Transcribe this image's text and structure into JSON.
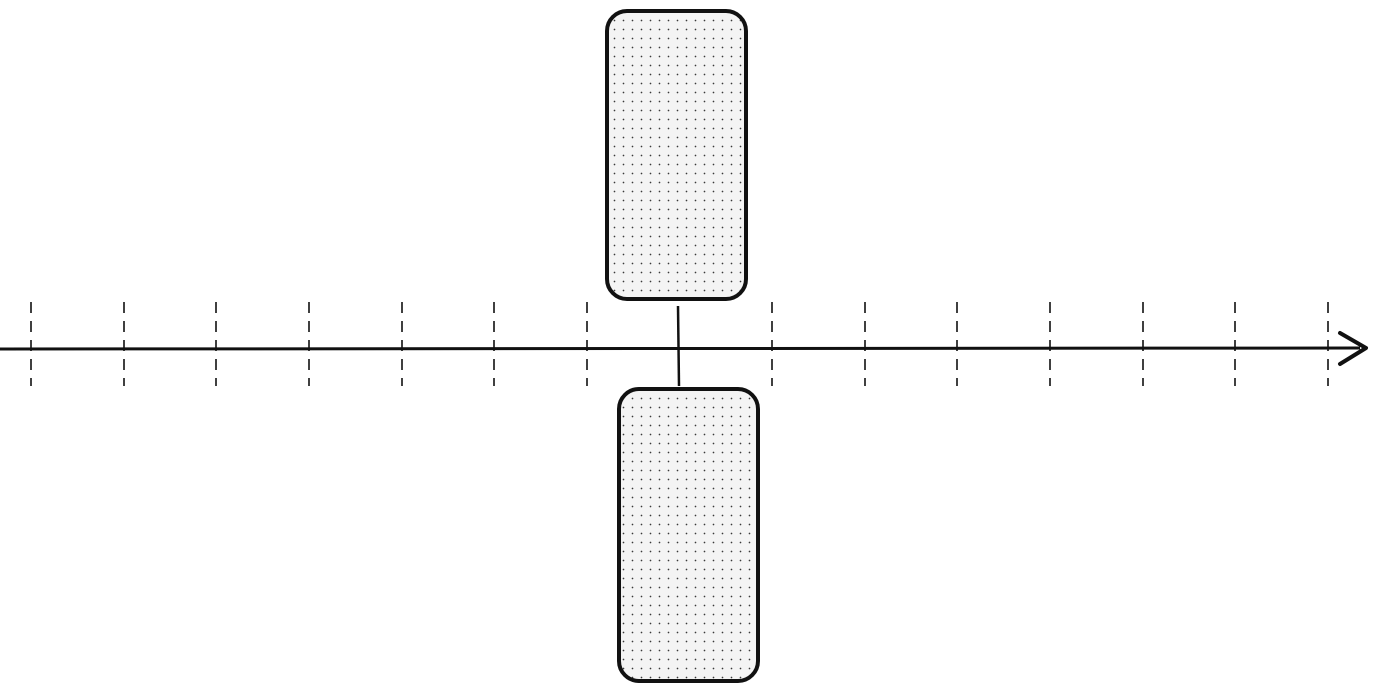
{
  "diagram": {
    "type": "number-line",
    "direction": "right",
    "tick_count": 15,
    "highlighted_tick_index": 7,
    "boxes": [
      {
        "name": "upper-block",
        "side": "above"
      },
      {
        "name": "lower-block",
        "side": "below"
      }
    ]
  },
  "colors": {
    "stroke": "#111111",
    "fill": "#f4f4f4",
    "dot": "#3a3a3a",
    "background": "#ffffff"
  }
}
